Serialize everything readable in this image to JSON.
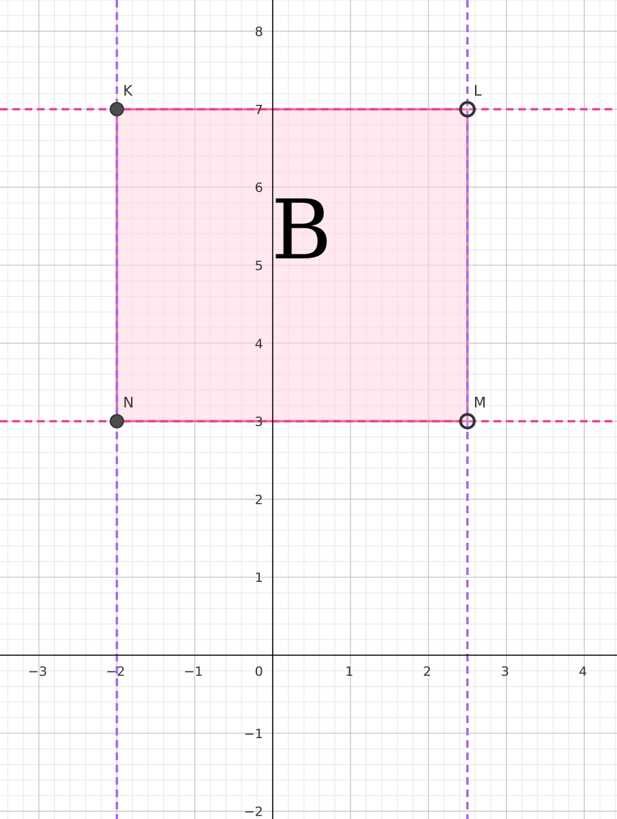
{
  "plot": {
    "x_range": [
      -3.5,
      4.42
    ],
    "y_range": [
      -2.1,
      8.4
    ],
    "major_step": 1,
    "minor_step": 0.2,
    "x_ticks": [
      {
        "value": -3,
        "label": "−3"
      },
      {
        "value": -2,
        "label": "−2"
      },
      {
        "value": -1,
        "label": "−1"
      },
      {
        "value": 1,
        "label": "1"
      },
      {
        "value": 2,
        "label": "2"
      },
      {
        "value": 3,
        "label": "3"
      },
      {
        "value": 4,
        "label": "4"
      }
    ],
    "y_ticks": [
      {
        "value": -2,
        "label": "−2"
      },
      {
        "value": -1,
        "label": "−1"
      },
      {
        "value": 1,
        "label": "1"
      },
      {
        "value": 2,
        "label": "2"
      },
      {
        "value": 3,
        "label": "3"
      },
      {
        "value": 4,
        "label": "4"
      },
      {
        "value": 5,
        "label": "5"
      },
      {
        "value": 6,
        "label": "6"
      },
      {
        "value": 7,
        "label": "7"
      },
      {
        "value": 8,
        "label": "8"
      }
    ],
    "origin_label": "0"
  },
  "colors": {
    "minor_grid": "#e6e6e6",
    "major_grid": "#c0c0c0",
    "axis": "#000000",
    "horizontal_lines": "#e8449b",
    "vertical_lines": "#a965f0",
    "rect_edge": "#e8447a",
    "rect_fill": "#ffd6e0",
    "point_fill": "#4d4d4d",
    "point_stroke": "#333333"
  },
  "dashed_lines": {
    "horizontal": [
      3,
      7
    ],
    "vertical": [
      -2,
      2.5
    ]
  },
  "rectangle": {
    "name": "B",
    "label": "B",
    "label_at": [
      0,
      5
    ]
  },
  "points": [
    {
      "name": "K",
      "label": "K",
      "x": -2,
      "y": 7,
      "style": "filled"
    },
    {
      "name": "L",
      "label": "L",
      "x": 2.5,
      "y": 7,
      "style": "hollow"
    },
    {
      "name": "M",
      "label": "M",
      "x": 2.5,
      "y": 3,
      "style": "hollow"
    },
    {
      "name": "N",
      "label": "N",
      "x": -2,
      "y": 3,
      "style": "filled"
    }
  ]
}
